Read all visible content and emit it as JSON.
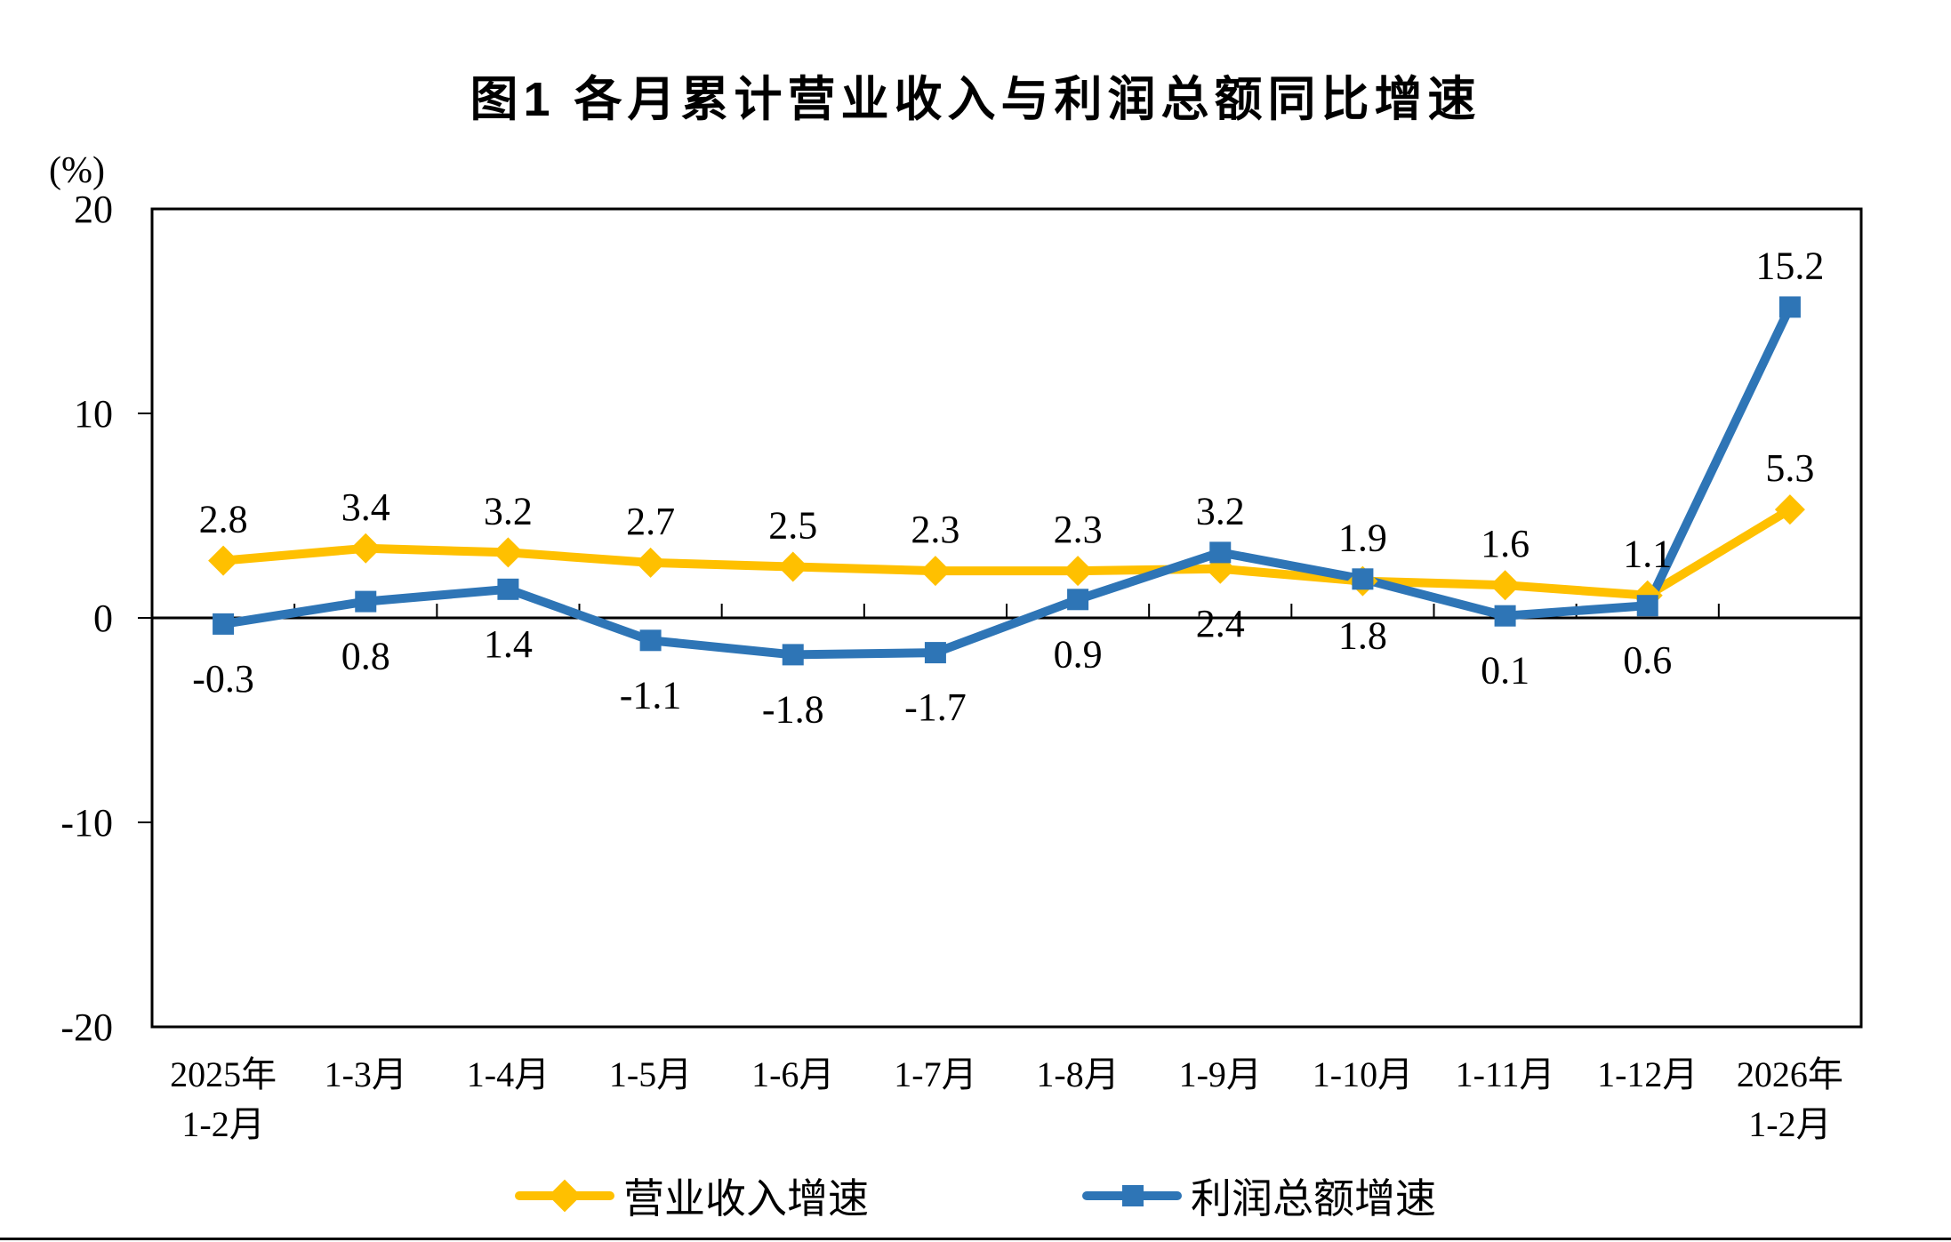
{
  "title": "图1  各月累计营业收入与利润总额同比增速",
  "y_axis": {
    "unit": "(%)",
    "ticks": [
      20,
      10,
      0,
      -10,
      -20
    ],
    "min": -20,
    "max": 20
  },
  "colors": {
    "revenue": "#FFC000",
    "profit": "#2E75B6",
    "axis": "#000000",
    "label_text": "#000000"
  },
  "chart_data": {
    "type": "line",
    "title": "图1  各月累计营业收入与利润总额同比增速",
    "ylabel": "(%)",
    "ylim": [
      -20,
      20
    ],
    "yticks": [
      20,
      10,
      0,
      -10,
      -20
    ],
    "grid": false,
    "legend_position": "bottom",
    "categories": [
      [
        "2025年",
        "1-2月"
      ],
      [
        "1-3月"
      ],
      [
        "1-4月"
      ],
      [
        "1-5月"
      ],
      [
        "1-6月"
      ],
      [
        "1-7月"
      ],
      [
        "1-8月"
      ],
      [
        "1-9月"
      ],
      [
        "1-10月"
      ],
      [
        "1-11月"
      ],
      [
        "1-12月"
      ],
      [
        "2026年",
        "1-2月"
      ]
    ],
    "series": [
      {
        "name": "营业收入增速",
        "color": "#FFC000",
        "marker": "diamond",
        "values": [
          2.8,
          3.4,
          3.2,
          2.7,
          2.5,
          2.3,
          2.3,
          2.4,
          1.8,
          1.6,
          1.1,
          5.3
        ],
        "label_positions": [
          "above",
          "above",
          "above",
          "above",
          "above",
          "above",
          "above",
          "below",
          "below",
          "above",
          "above",
          "above"
        ]
      },
      {
        "name": "利润总额增速",
        "color": "#2E75B6",
        "marker": "square",
        "values": [
          -0.3,
          0.8,
          1.4,
          -1.1,
          -1.8,
          -1.7,
          0.9,
          3.2,
          1.9,
          0.1,
          0.6,
          15.2
        ],
        "label_positions": [
          "below",
          "below",
          "below",
          "below",
          "below",
          "below",
          "below",
          "above",
          "above",
          "below",
          "below",
          "above"
        ]
      }
    ]
  }
}
